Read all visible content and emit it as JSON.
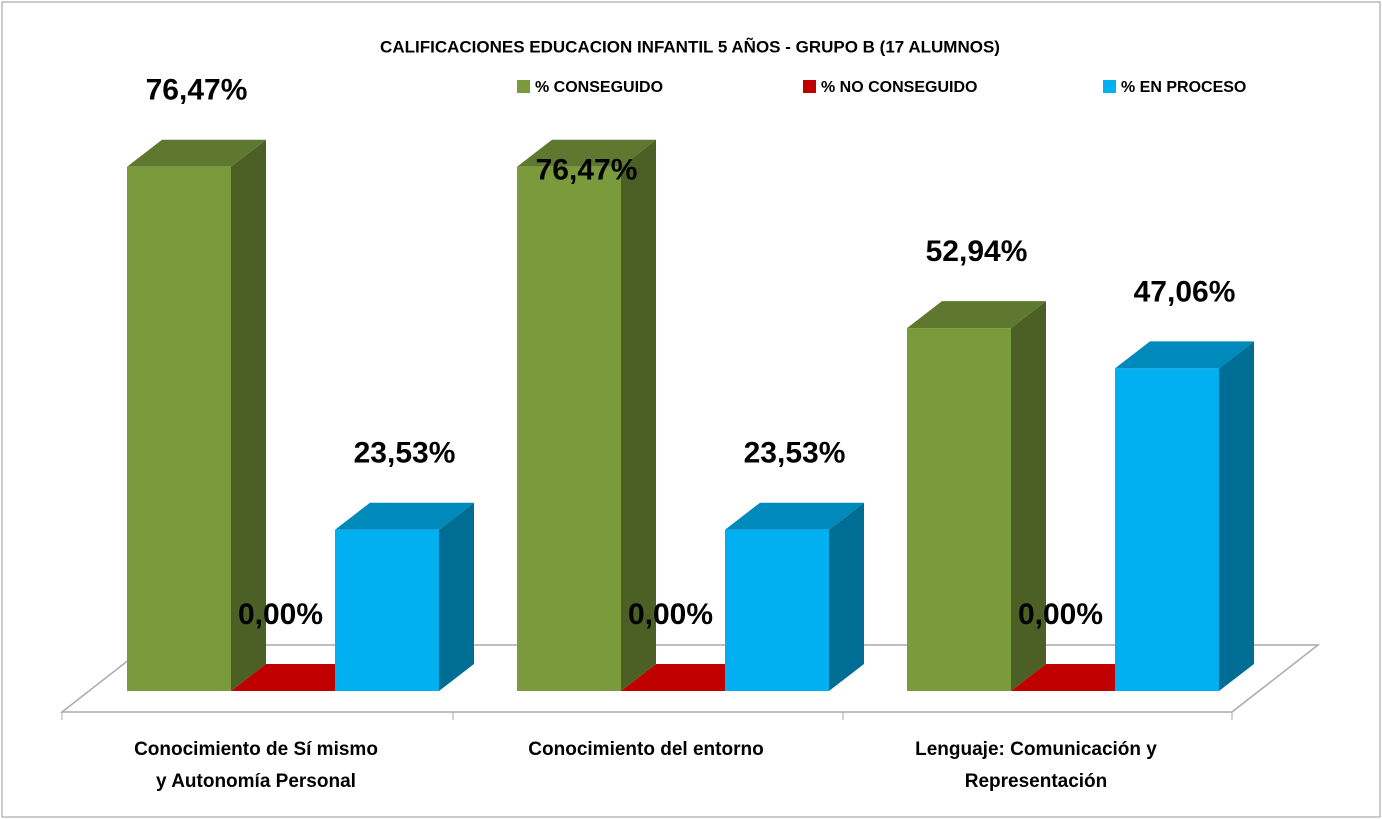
{
  "chart_data": {
    "type": "bar3d",
    "title": "CALIFICACIONES EDUCACION INFANTIL 5 AÑOS - GRUPO B (17 ALUMNOS)",
    "categories": [
      [
        "Conocimiento de  Sí mismo",
        "y  Autonomía Personal"
      ],
      [
        "Conocimiento del  entorno"
      ],
      [
        "Lenguaje: Comunicación y",
        "Representación"
      ]
    ],
    "series": [
      {
        "name": "% CONSEGUIDO",
        "color": "#7a9a3c",
        "values": [
          76.47,
          76.47,
          52.94
        ],
        "value_labels": [
          "76,47%",
          "76,47%",
          "52,94%"
        ]
      },
      {
        "name": "% NO CONSEGUIDO",
        "color": "#c00000",
        "values": [
          0,
          0,
          0
        ],
        "value_labels": [
          "0,00%",
          "0,00%",
          "0,00%"
        ]
      },
      {
        "name": "% EN PROCESO",
        "color": "#00b0f0",
        "values": [
          23.53,
          23.53,
          47.06
        ],
        "value_labels": [
          "23,53%",
          "23,53%",
          "47,06%"
        ]
      }
    ],
    "legend": "top-right"
  }
}
